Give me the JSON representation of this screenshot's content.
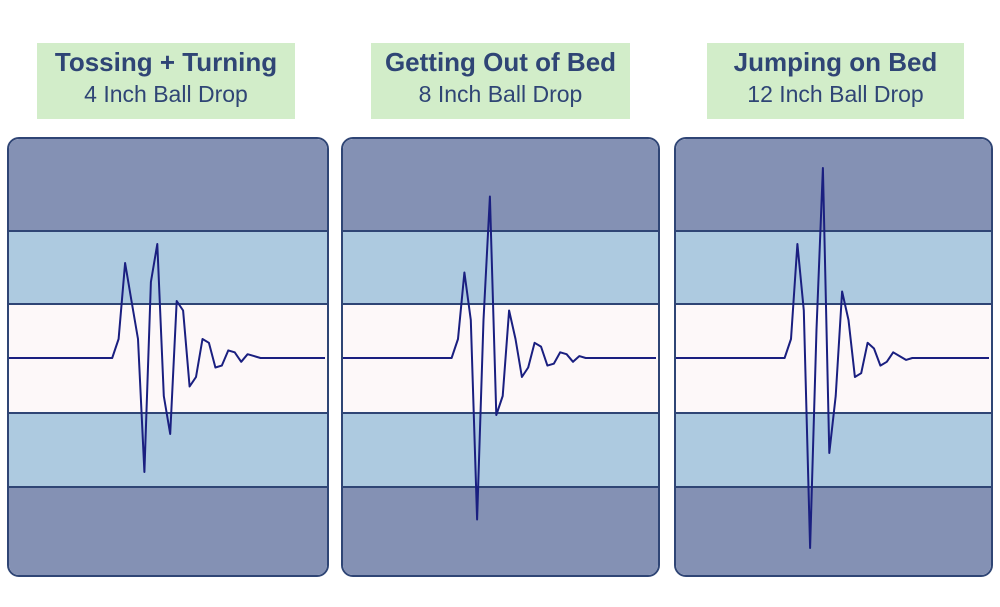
{
  "chart_data": [
    {
      "type": "line",
      "title": "Tossing + Turning",
      "subtitle": "4 Inch Ball Drop",
      "colors": {
        "label_bg": "#d2edc9",
        "line": "#1a1f80",
        "outer": "#8491b4",
        "mid": "#adcae0",
        "center": "#fdf8f9"
      },
      "series": [
        {
          "values": [
            0,
            0,
            0,
            0,
            0,
            0,
            0,
            0,
            0,
            0,
            0,
            0,
            0,
            0,
            0,
            0,
            0,
            0.1,
            0.5,
            0.3,
            0.1,
            -0.6,
            0.4,
            0.6,
            -0.2,
            -0.4,
            0.3,
            0.25,
            -0.15,
            -0.1,
            0.1,
            0.08,
            -0.05,
            -0.04,
            0.04,
            0.03,
            -0.02,
            0.02,
            0.01,
            0,
            0,
            0,
            0,
            0,
            0,
            0,
            0,
            0,
            0,
            0
          ]
        }
      ]
    },
    {
      "type": "line",
      "title": "Getting Out of Bed",
      "subtitle": "8 Inch Ball Drop",
      "colors": {
        "label_bg": "#d2edc9",
        "line": "#1a1f80",
        "outer": "#8491b4",
        "mid": "#adcae0",
        "center": "#fdf8f9"
      },
      "series": [
        {
          "values": [
            0,
            0,
            0,
            0,
            0,
            0,
            0,
            0,
            0,
            0,
            0,
            0,
            0,
            0,
            0,
            0,
            0,
            0,
            0.1,
            0.45,
            0.2,
            -0.85,
            0.2,
            0.85,
            -0.3,
            -0.2,
            0.25,
            0.1,
            -0.1,
            -0.05,
            0.08,
            0.06,
            -0.04,
            -0.03,
            0.03,
            0.02,
            -0.02,
            0.01,
            0,
            0,
            0,
            0,
            0,
            0,
            0,
            0,
            0,
            0,
            0,
            0
          ]
        }
      ]
    },
    {
      "type": "line",
      "title": "Jumping on Bed",
      "subtitle": "12 Inch Ball Drop",
      "colors": {
        "label_bg": "#d2edc9",
        "line": "#1a1f80",
        "outer": "#8491b4",
        "mid": "#adcae0",
        "center": "#fdf8f9"
      },
      "series": [
        {
          "values": [
            0,
            0,
            0,
            0,
            0,
            0,
            0,
            0,
            0,
            0,
            0,
            0,
            0,
            0,
            0,
            0,
            0,
            0,
            0.1,
            0.6,
            0.25,
            -1.0,
            0.15,
            1.0,
            -0.5,
            -0.2,
            0.35,
            0.2,
            -0.1,
            -0.08,
            0.08,
            0.05,
            -0.04,
            -0.02,
            0.03,
            0.01,
            -0.01,
            0,
            0,
            0,
            0,
            0,
            0,
            0,
            0,
            0,
            0,
            0,
            0,
            0
          ]
        }
      ]
    }
  ]
}
